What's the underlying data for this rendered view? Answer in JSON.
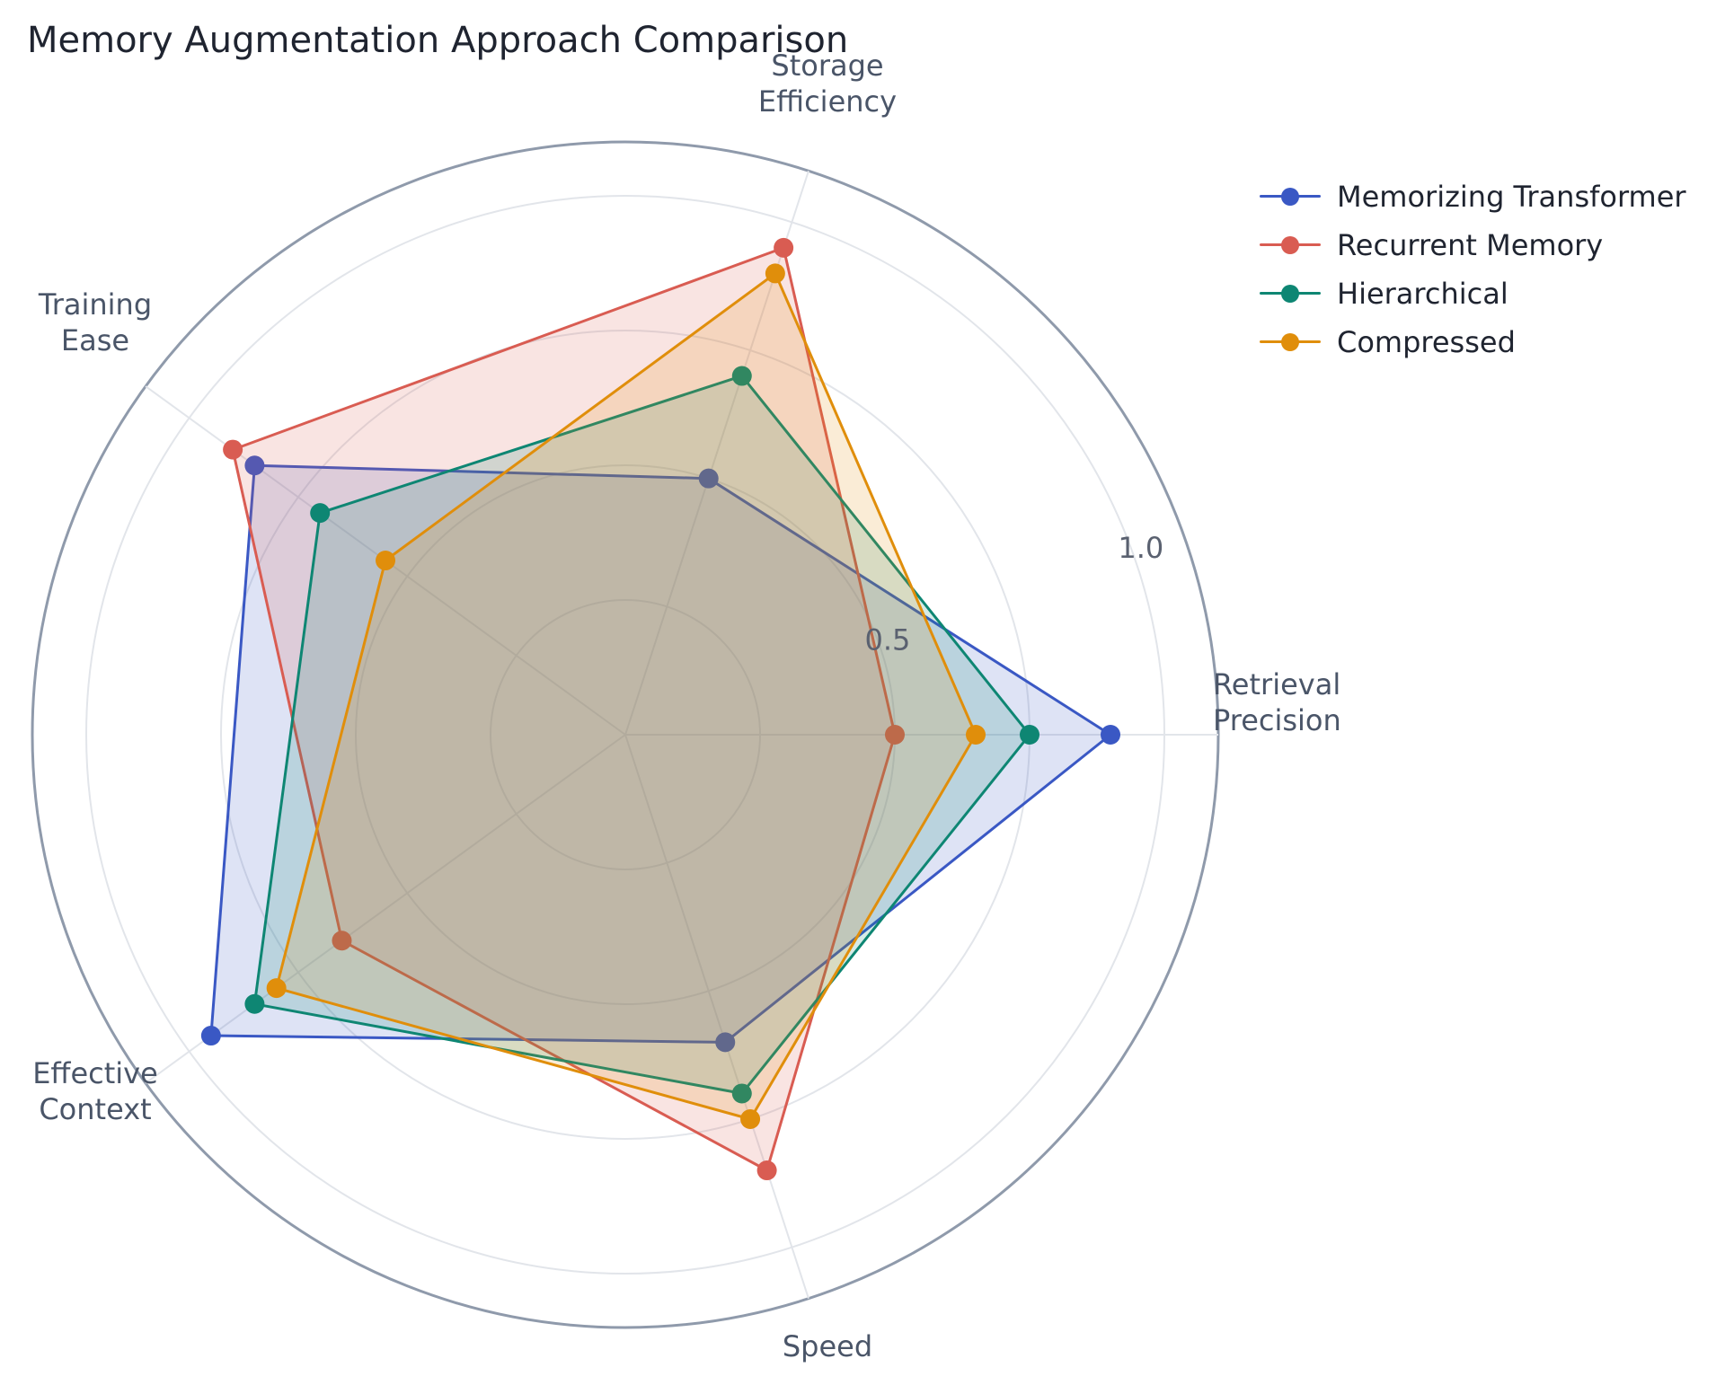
{
  "chart_data": {
    "type": "radar",
    "title": "Memory Augmentation Approach Comparison",
    "axes": [
      {
        "label": [
          "Retrieval",
          "Precision"
        ],
        "angle_deg": 0
      },
      {
        "label": [
          "Storage",
          "Efficiency"
        ],
        "angle_deg": 72
      },
      {
        "label": [
          "Training",
          "Ease"
        ],
        "angle_deg": 144
      },
      {
        "label": [
          "Effective",
          "Context"
        ],
        "angle_deg": 216
      },
      {
        "label": [
          "Speed"
        ],
        "angle_deg": 288
      }
    ],
    "radial_range": [
      0,
      1.1
    ],
    "radial_ticks": [
      0.5,
      1.0
    ],
    "radial_tick_labels": [
      "0.5",
      "1.0"
    ],
    "grid_levels": [
      0.25,
      0.5,
      0.75,
      1.0
    ],
    "legend_position": "top-right",
    "series": [
      {
        "name": "Memorizing Transformer",
        "color": "#3a58c4",
        "values": [
          0.9,
          0.5,
          0.85,
          0.95,
          0.6
        ]
      },
      {
        "name": "Recurrent Memory",
        "color": "#d95c52",
        "values": [
          0.5,
          0.95,
          0.9,
          0.65,
          0.85
        ]
      },
      {
        "name": "Hierarchical",
        "color": "#0e8673",
        "values": [
          0.75,
          0.7,
          0.7,
          0.85,
          0.7
        ]
      },
      {
        "name": "Compressed",
        "color": "#e08e0b",
        "values": [
          0.65,
          0.9,
          0.55,
          0.8,
          0.75
        ]
      }
    ]
  }
}
